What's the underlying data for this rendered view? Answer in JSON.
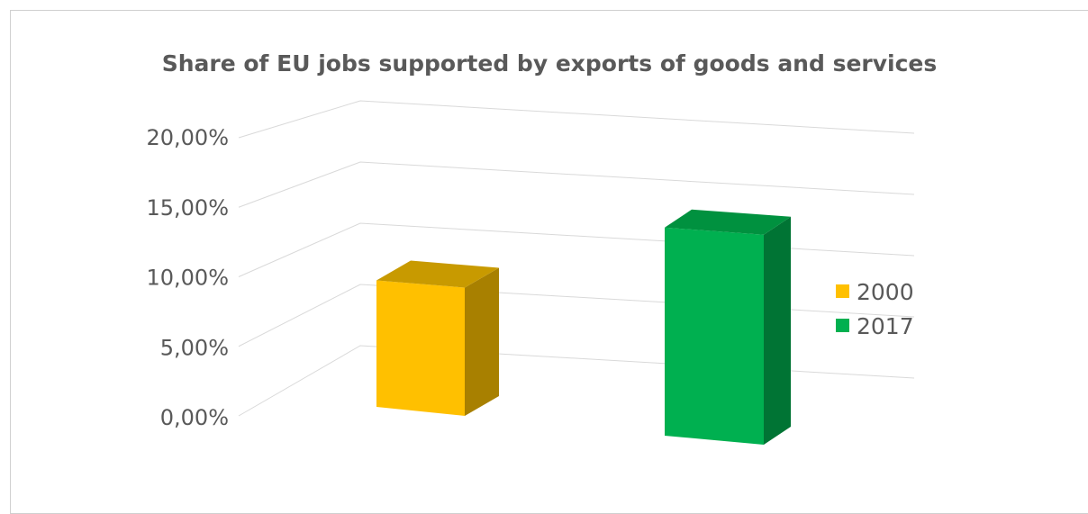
{
  "chart_data": {
    "type": "bar",
    "title": "Share of EU jobs supported by exports of goods and services",
    "xlabel": "",
    "ylabel": "",
    "ylim": [
      0,
      20
    ],
    "yticks": [
      "0,00%",
      "5,00%",
      "10,00%",
      "15,00%",
      "20,00%"
    ],
    "ytick_values": [
      0,
      5,
      10,
      15,
      20
    ],
    "categories": [
      ""
    ],
    "series": [
      {
        "name": "2000",
        "values": [
          9.9
        ],
        "color": "#FFC000",
        "side_color": "#A88000",
        "top_color": "#C89A00"
      },
      {
        "name": "2017",
        "values": [
          14.5
        ],
        "color": "#00B050",
        "side_color": "#007434",
        "top_color": "#00913F"
      }
    ],
    "grid": true,
    "legend_position": "right",
    "style": "3d-column"
  }
}
